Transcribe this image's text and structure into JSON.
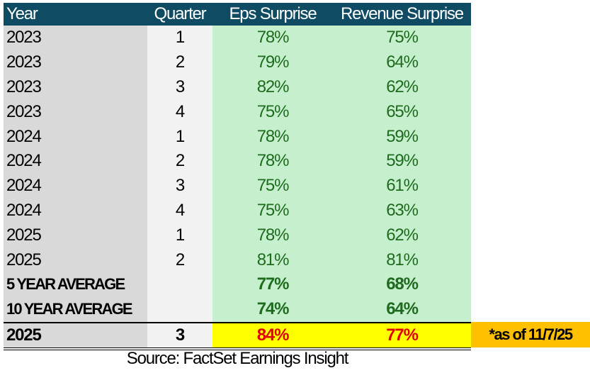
{
  "headers": {
    "year": "Year",
    "quarter": "Quarter",
    "eps": "Eps Surprise",
    "revenue": "Revenue Surprise"
  },
  "rows": [
    {
      "year": "2023",
      "quarter": "1",
      "eps": "78%",
      "revenue": "75%"
    },
    {
      "year": "2023",
      "quarter": "2",
      "eps": "79%",
      "revenue": "64%"
    },
    {
      "year": "2023",
      "quarter": "3",
      "eps": "82%",
      "revenue": "62%"
    },
    {
      "year": "2023",
      "quarter": "4",
      "eps": "75%",
      "revenue": "65%"
    },
    {
      "year": "2024",
      "quarter": "1",
      "eps": "78%",
      "revenue": "59%"
    },
    {
      "year": "2024",
      "quarter": "2",
      "eps": "78%",
      "revenue": "59%"
    },
    {
      "year": "2024",
      "quarter": "3",
      "eps": "75%",
      "revenue": "61%"
    },
    {
      "year": "2024",
      "quarter": "4",
      "eps": "75%",
      "revenue": "63%"
    },
    {
      "year": "2025",
      "quarter": "1",
      "eps": "78%",
      "revenue": "62%"
    },
    {
      "year": "2025",
      "quarter": "2",
      "eps": "81%",
      "revenue": "81%"
    }
  ],
  "averages": [
    {
      "label": "5 YEAR AVERAGE",
      "eps": "77%",
      "revenue": "68%"
    },
    {
      "label": "10 YEAR AVERAGE",
      "eps": "74%",
      "revenue": "64%"
    }
  ],
  "current": {
    "year": "2025",
    "quarter": "3",
    "eps": "84%",
    "revenue": "77%",
    "note": "*as of 11/7/25"
  },
  "source": "Source: FactSet Earnings Insight",
  "colors": {
    "header": "#0f4c64",
    "green_fill": "#c6efce",
    "green_text": "#1e6b1e",
    "highlight": "#ffff00",
    "current_text": "#e00000",
    "note_fill": "#ffc000"
  }
}
